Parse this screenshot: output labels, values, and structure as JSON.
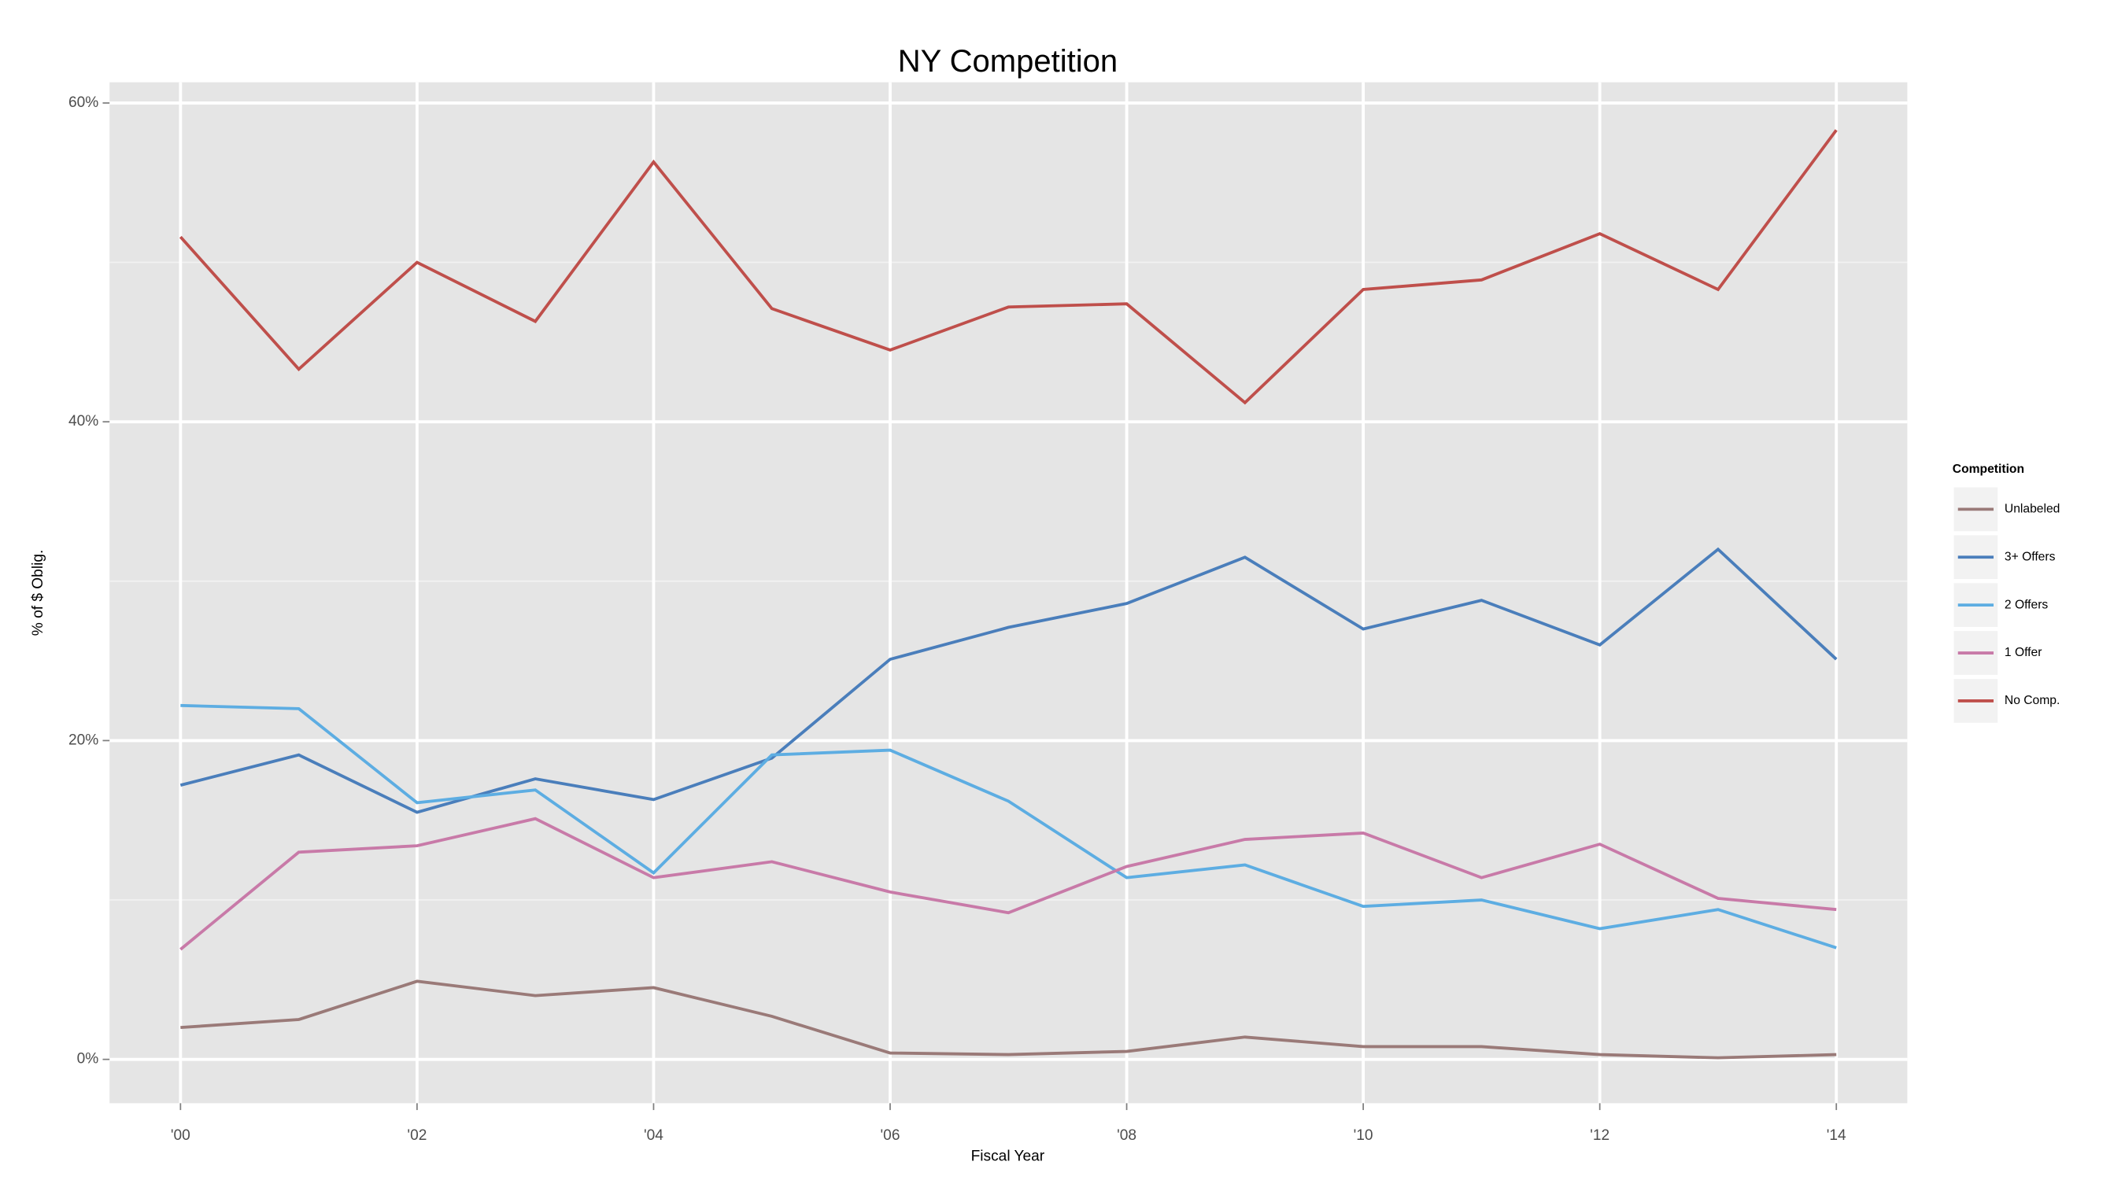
{
  "chart_data": {
    "type": "line",
    "title": "NY Competition",
    "x_label": "Fiscal Year",
    "y_label": "% of $ Oblig.",
    "x": [
      2000,
      2001,
      2002,
      2003,
      2004,
      2005,
      2006,
      2007,
      2008,
      2009,
      2010,
      2011,
      2012,
      2013,
      2014
    ],
    "xlim": [
      1999.4,
      2014.6
    ],
    "xticks": [
      {
        "value": 2000,
        "label": "'00"
      },
      {
        "value": 2002,
        "label": "'02"
      },
      {
        "value": 2004,
        "label": "'04"
      },
      {
        "value": 2006,
        "label": "'06"
      },
      {
        "value": 2008,
        "label": "'08"
      },
      {
        "value": 2010,
        "label": "'10"
      },
      {
        "value": 2012,
        "label": "'12"
      },
      {
        "value": 2014,
        "label": "'14"
      }
    ],
    "ylim": [
      -2.75,
      61.3
    ],
    "yticks": [
      {
        "value": 0,
        "label": "0%"
      },
      {
        "value": 20,
        "label": "20%"
      },
      {
        "value": 40,
        "label": "40%"
      },
      {
        "value": 60,
        "label": "60%"
      }
    ],
    "yminorticks": [
      10,
      30,
      50
    ],
    "grid": true,
    "legend_title": "Competition",
    "legend_position": "right",
    "series": [
      {
        "name": "Unlabeled",
        "color": "#9a7a78",
        "values": [
          2.0,
          2.5,
          4.9,
          4.0,
          4.5,
          2.7,
          0.4,
          0.3,
          0.5,
          1.4,
          0.8,
          0.8,
          0.3,
          0.1,
          0.3
        ]
      },
      {
        "name": "3+ Offers",
        "color": "#4a7ebb",
        "values": [
          17.2,
          19.1,
          15.5,
          17.6,
          16.3,
          18.9,
          25.1,
          27.1,
          28.6,
          31.5,
          27.0,
          28.8,
          26.0,
          32.0,
          25.1
        ]
      },
      {
        "name": "2 Offers",
        "color": "#5dade2",
        "values": [
          22.2,
          22.0,
          16.1,
          16.9,
          11.7,
          19.1,
          19.4,
          16.2,
          11.4,
          12.2,
          9.6,
          10.0,
          8.2,
          9.4,
          7.0
        ]
      },
      {
        "name": "1 Offer",
        "color": "#c87aa8",
        "values": [
          6.9,
          13.0,
          13.4,
          15.1,
          11.4,
          12.4,
          10.5,
          9.2,
          12.1,
          13.8,
          14.2,
          11.4,
          13.5,
          10.1,
          9.4
        ]
      },
      {
        "name": "No Comp.",
        "color": "#bf4f4b",
        "values": [
          51.6,
          43.3,
          50.0,
          46.3,
          56.3,
          47.1,
          44.5,
          47.2,
          47.4,
          41.2,
          48.3,
          48.9,
          51.8,
          48.3,
          58.3
        ]
      }
    ]
  }
}
